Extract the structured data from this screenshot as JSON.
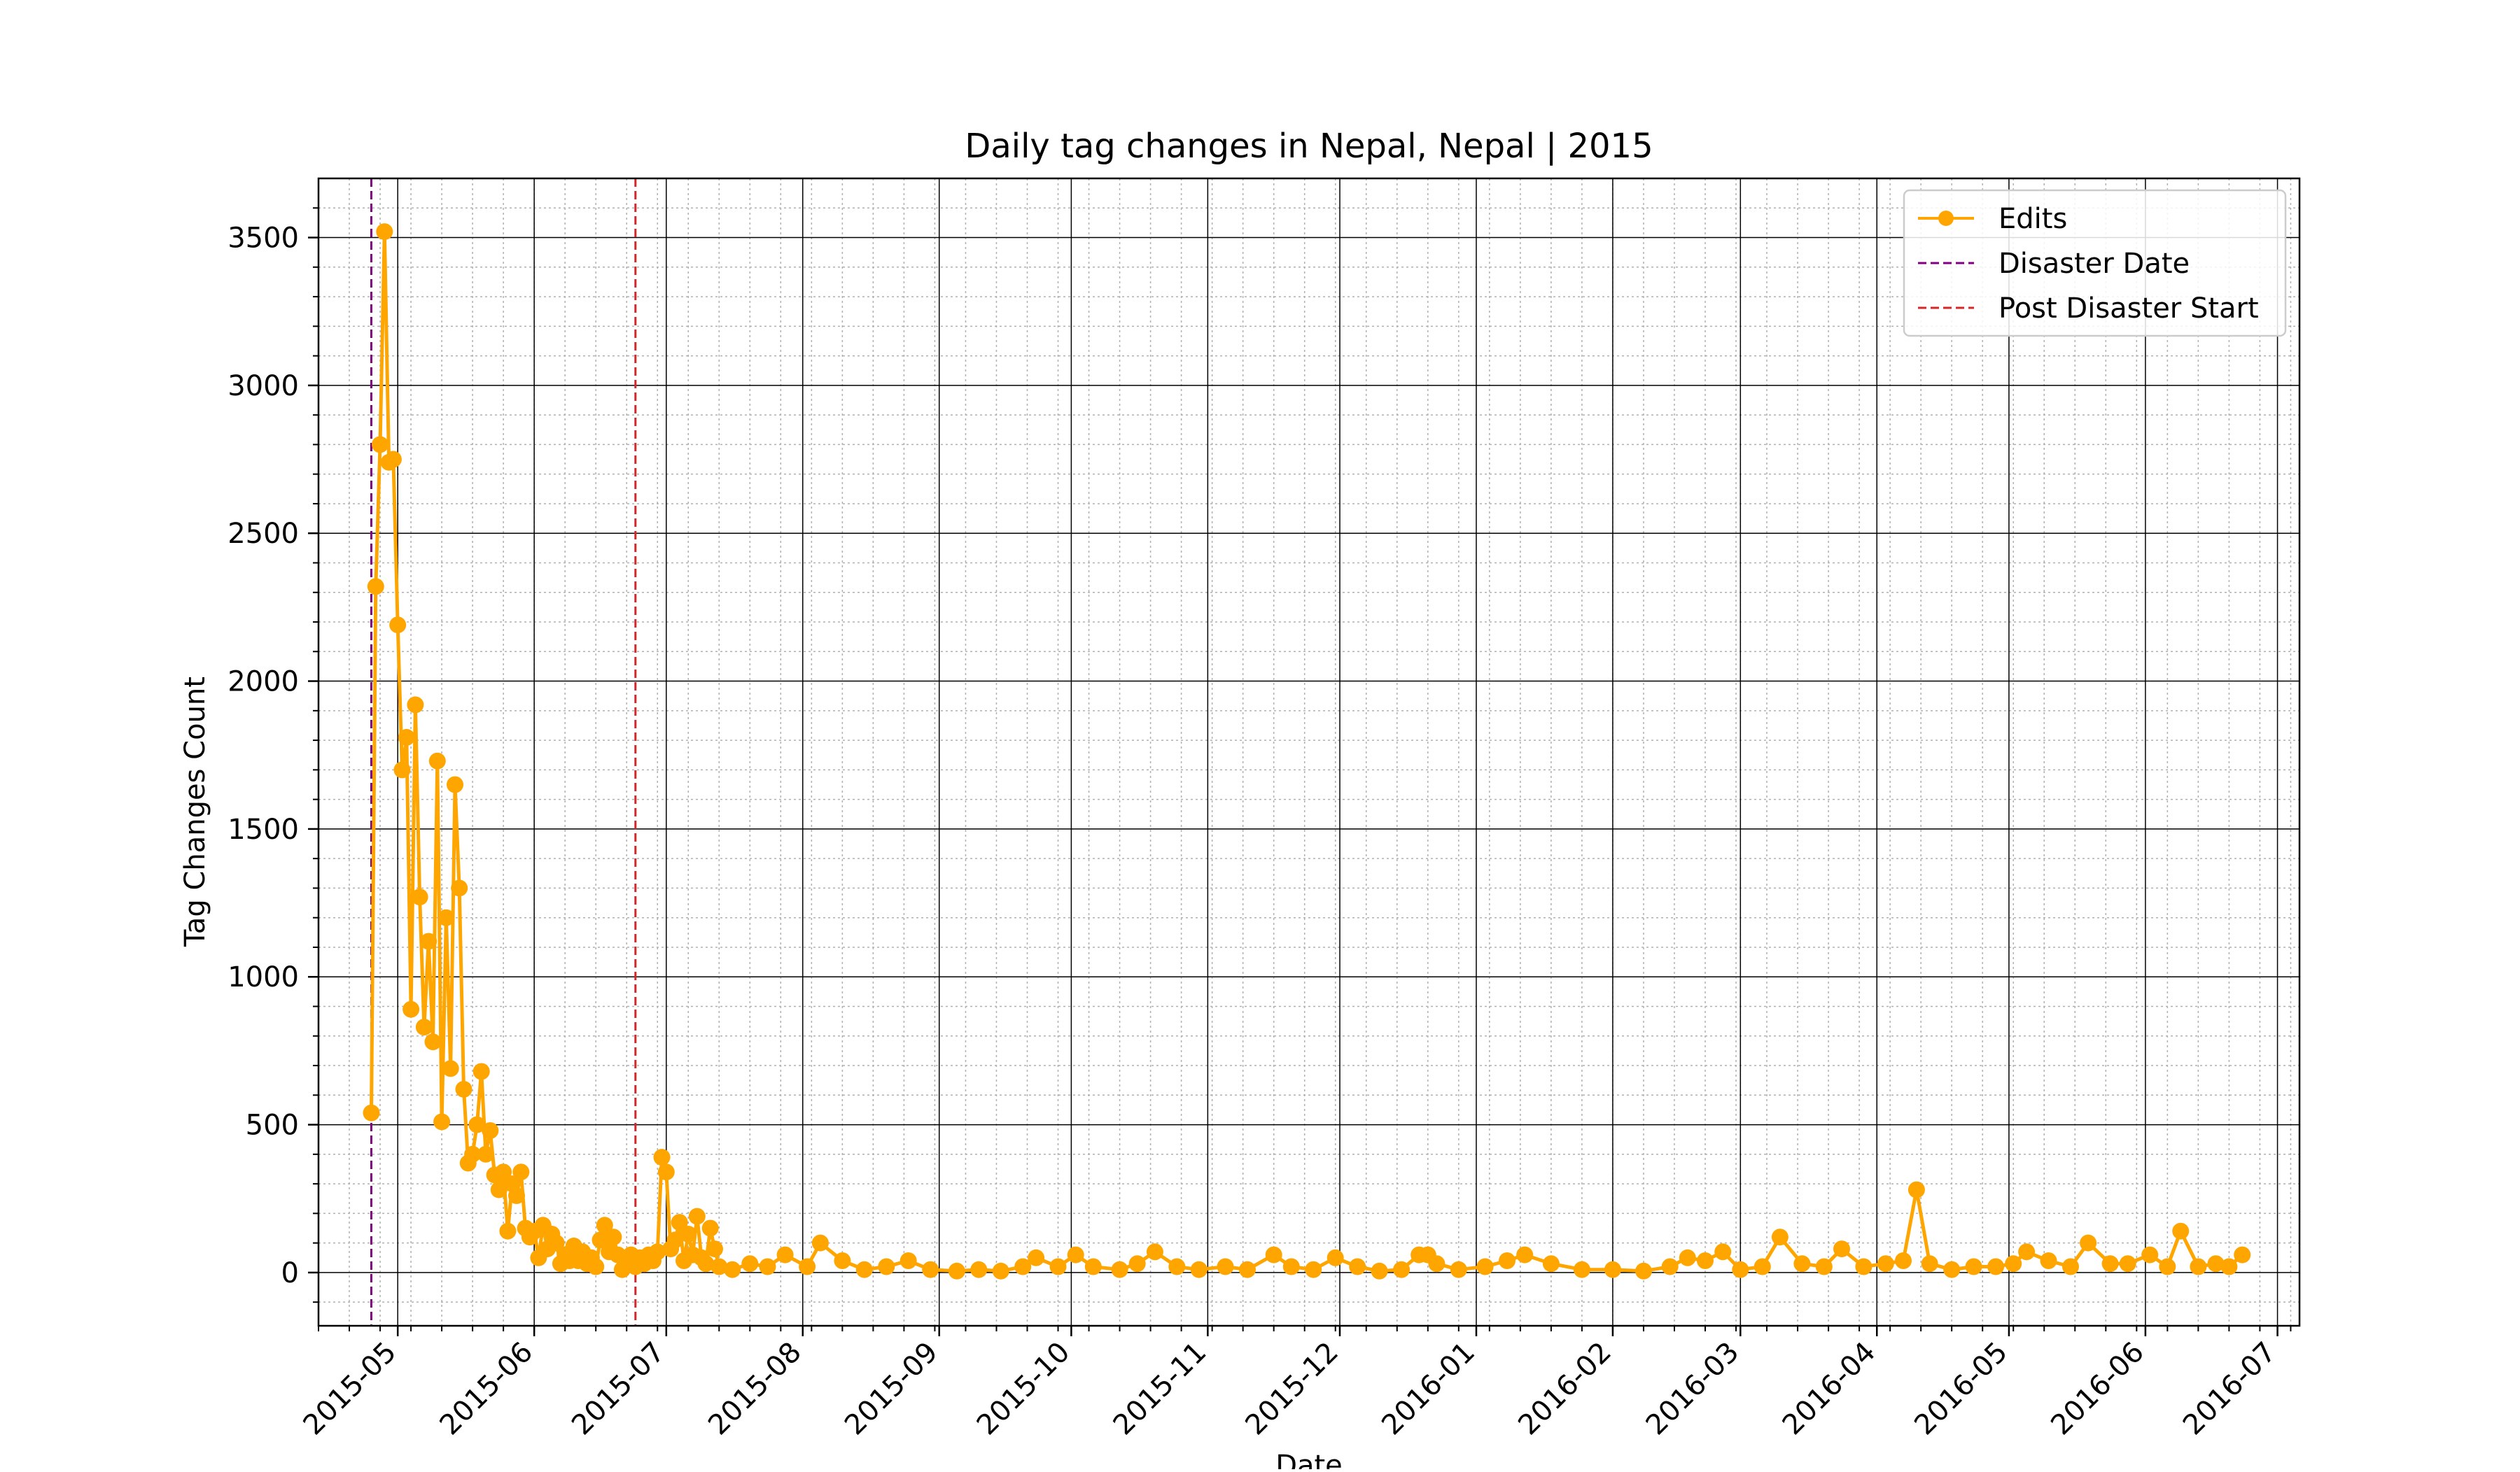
{
  "chart_data": {
    "type": "line",
    "title": "Daily tag changes in Nepal, Nepal | 2015",
    "xlabel": "Date",
    "ylabel": "Tag Changes Count",
    "xlim": [
      "2015-04-13",
      "2016-07-06"
    ],
    "ylim": [
      -180,
      3700
    ],
    "grid": true,
    "minor_grid": true,
    "legend_position": "top-right",
    "x_ticks": [
      "2015-05",
      "2015-06",
      "2015-07",
      "2015-08",
      "2015-09",
      "2015-10",
      "2015-11",
      "2015-12",
      "2016-01",
      "2016-02",
      "2016-03",
      "2016-04",
      "2016-05",
      "2016-06",
      "2016-07"
    ],
    "x_tick_dates": [
      "2015-05-01",
      "2015-06-01",
      "2015-07-01",
      "2015-08-01",
      "2015-09-01",
      "2015-10-01",
      "2015-11-01",
      "2015-12-01",
      "2016-01-01",
      "2016-02-01",
      "2016-03-01",
      "2016-04-01",
      "2016-05-01",
      "2016-06-01",
      "2016-07-01"
    ],
    "y_ticks": [
      0,
      500,
      1000,
      1500,
      2000,
      2500,
      3000,
      3500
    ],
    "series": [
      {
        "name": "Edits",
        "color": "#FFA500",
        "marker": "circle",
        "points": [
          [
            "2015-04-25",
            540
          ],
          [
            "2015-04-26",
            2320
          ],
          [
            "2015-04-27",
            2800
          ],
          [
            "2015-04-28",
            3520
          ],
          [
            "2015-04-29",
            2740
          ],
          [
            "2015-04-30",
            2750
          ],
          [
            "2015-05-01",
            2190
          ],
          [
            "2015-05-02",
            1700
          ],
          [
            "2015-05-03",
            1810
          ],
          [
            "2015-05-04",
            890
          ],
          [
            "2015-05-05",
            1920
          ],
          [
            "2015-05-06",
            1270
          ],
          [
            "2015-05-07",
            830
          ],
          [
            "2015-05-08",
            1120
          ],
          [
            "2015-05-09",
            780
          ],
          [
            "2015-05-10",
            1730
          ],
          [
            "2015-05-11",
            510
          ],
          [
            "2015-05-12",
            1200
          ],
          [
            "2015-05-13",
            690
          ],
          [
            "2015-05-14",
            1650
          ],
          [
            "2015-05-15",
            1300
          ],
          [
            "2015-05-16",
            620
          ],
          [
            "2015-05-17",
            370
          ],
          [
            "2015-05-18",
            400
          ],
          [
            "2015-05-19",
            500
          ],
          [
            "2015-05-20",
            680
          ],
          [
            "2015-05-21",
            400
          ],
          [
            "2015-05-22",
            480
          ],
          [
            "2015-05-23",
            330
          ],
          [
            "2015-05-24",
            280
          ],
          [
            "2015-05-25",
            340
          ],
          [
            "2015-05-26",
            140
          ],
          [
            "2015-05-27",
            300
          ],
          [
            "2015-05-28",
            260
          ],
          [
            "2015-05-29",
            340
          ],
          [
            "2015-05-30",
            150
          ],
          [
            "2015-05-31",
            120
          ],
          [
            "2015-06-01",
            140
          ],
          [
            "2015-06-02",
            50
          ],
          [
            "2015-06-03",
            160
          ],
          [
            "2015-06-04",
            80
          ],
          [
            "2015-06-05",
            130
          ],
          [
            "2015-06-06",
            100
          ],
          [
            "2015-06-07",
            30
          ],
          [
            "2015-06-08",
            60
          ],
          [
            "2015-06-09",
            40
          ],
          [
            "2015-06-10",
            90
          ],
          [
            "2015-06-11",
            40
          ],
          [
            "2015-06-12",
            70
          ],
          [
            "2015-06-13",
            30
          ],
          [
            "2015-06-14",
            50
          ],
          [
            "2015-06-15",
            20
          ],
          [
            "2015-06-16",
            110
          ],
          [
            "2015-06-17",
            160
          ],
          [
            "2015-06-18",
            70
          ],
          [
            "2015-06-19",
            120
          ],
          [
            "2015-06-20",
            60
          ],
          [
            "2015-06-21",
            10
          ],
          [
            "2015-06-22",
            40
          ],
          [
            "2015-06-23",
            60
          ],
          [
            "2015-06-24",
            20
          ],
          [
            "2015-06-25",
            50
          ],
          [
            "2015-06-26",
            30
          ],
          [
            "2015-06-27",
            60
          ],
          [
            "2015-06-28",
            40
          ],
          [
            "2015-06-29",
            70
          ],
          [
            "2015-06-30",
            390
          ],
          [
            "2015-07-01",
            340
          ],
          [
            "2015-07-02",
            80
          ],
          [
            "2015-07-03",
            110
          ],
          [
            "2015-07-04",
            170
          ],
          [
            "2015-07-05",
            40
          ],
          [
            "2015-07-06",
            130
          ],
          [
            "2015-07-07",
            60
          ],
          [
            "2015-07-08",
            190
          ],
          [
            "2015-07-09",
            50
          ],
          [
            "2015-07-10",
            30
          ],
          [
            "2015-07-11",
            150
          ],
          [
            "2015-07-12",
            80
          ],
          [
            "2015-07-13",
            20
          ],
          [
            "2015-07-16",
            10
          ],
          [
            "2015-07-20",
            30
          ],
          [
            "2015-07-24",
            20
          ],
          [
            "2015-07-28",
            60
          ],
          [
            "2015-08-02",
            20
          ],
          [
            "2015-08-05",
            100
          ],
          [
            "2015-08-10",
            40
          ],
          [
            "2015-08-15",
            10
          ],
          [
            "2015-08-20",
            20
          ],
          [
            "2015-08-25",
            40
          ],
          [
            "2015-08-30",
            10
          ],
          [
            "2015-09-05",
            5
          ],
          [
            "2015-09-10",
            10
          ],
          [
            "2015-09-15",
            5
          ],
          [
            "2015-09-20",
            20
          ],
          [
            "2015-09-23",
            50
          ],
          [
            "2015-09-28",
            20
          ],
          [
            "2015-10-02",
            60
          ],
          [
            "2015-10-06",
            20
          ],
          [
            "2015-10-12",
            10
          ],
          [
            "2015-10-16",
            30
          ],
          [
            "2015-10-20",
            70
          ],
          [
            "2015-10-25",
            20
          ],
          [
            "2015-10-30",
            10
          ],
          [
            "2015-11-05",
            20
          ],
          [
            "2015-11-10",
            10
          ],
          [
            "2015-11-16",
            60
          ],
          [
            "2015-11-20",
            20
          ],
          [
            "2015-11-25",
            10
          ],
          [
            "2015-11-30",
            50
          ],
          [
            "2015-12-05",
            20
          ],
          [
            "2015-12-10",
            5
          ],
          [
            "2015-12-15",
            10
          ],
          [
            "2015-12-19",
            60
          ],
          [
            "2015-12-21",
            60
          ],
          [
            "2015-12-23",
            30
          ],
          [
            "2015-12-28",
            10
          ],
          [
            "2016-01-03",
            20
          ],
          [
            "2016-01-08",
            40
          ],
          [
            "2016-01-12",
            60
          ],
          [
            "2016-01-18",
            30
          ],
          [
            "2016-01-25",
            10
          ],
          [
            "2016-02-01",
            10
          ],
          [
            "2016-02-08",
            5
          ],
          [
            "2016-02-14",
            20
          ],
          [
            "2016-02-18",
            50
          ],
          [
            "2016-02-22",
            40
          ],
          [
            "2016-02-26",
            70
          ],
          [
            "2016-03-01",
            10
          ],
          [
            "2016-03-06",
            20
          ],
          [
            "2016-03-10",
            120
          ],
          [
            "2016-03-15",
            30
          ],
          [
            "2016-03-20",
            20
          ],
          [
            "2016-03-24",
            80
          ],
          [
            "2016-03-29",
            20
          ],
          [
            "2016-04-03",
            30
          ],
          [
            "2016-04-07",
            40
          ],
          [
            "2016-04-10",
            280
          ],
          [
            "2016-04-13",
            30
          ],
          [
            "2016-04-18",
            10
          ],
          [
            "2016-04-23",
            20
          ],
          [
            "2016-04-28",
            20
          ],
          [
            "2016-05-02",
            30
          ],
          [
            "2016-05-05",
            70
          ],
          [
            "2016-05-10",
            40
          ],
          [
            "2016-05-15",
            20
          ],
          [
            "2016-05-19",
            100
          ],
          [
            "2016-05-24",
            30
          ],
          [
            "2016-05-28",
            30
          ],
          [
            "2016-06-02",
            60
          ],
          [
            "2016-06-06",
            20
          ],
          [
            "2016-06-09",
            140
          ],
          [
            "2016-06-13",
            20
          ],
          [
            "2016-06-17",
            30
          ],
          [
            "2016-06-20",
            20
          ],
          [
            "2016-06-23",
            60
          ]
        ]
      },
      {
        "name": "Disaster Date",
        "color": "#800080",
        "style": "dashed",
        "x": "2015-04-25"
      },
      {
        "name": "Post Disaster Start",
        "color": "#D62728",
        "style": "dashed",
        "x": "2015-06-24"
      }
    ]
  }
}
